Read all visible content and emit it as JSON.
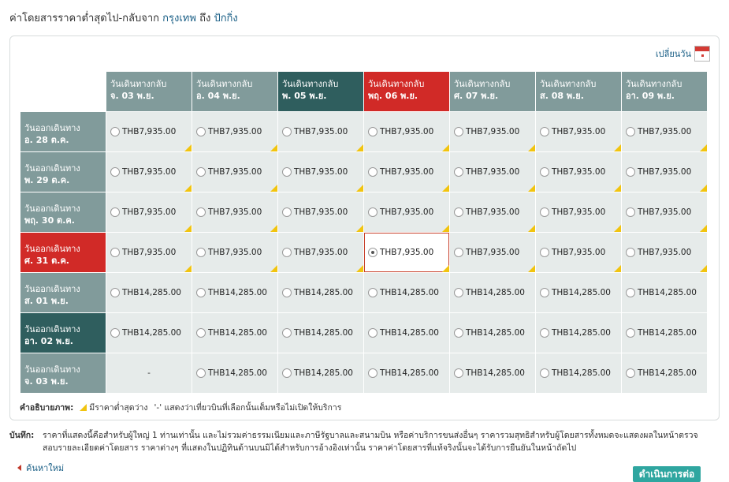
{
  "title": {
    "prefix": "ค่าโดยสารราคาต่ำสุดไป-กลับจาก ",
    "from_city": "กรุงเทพ",
    "mid": " ถึง ",
    "to_city": "ปักกิ่ง"
  },
  "change_date_label": "เปลี่ยนวัน",
  "columns": [
    {
      "label": "วันเดินทางกลับ",
      "date": "จ. 03 พ.ย.",
      "style": "normal"
    },
    {
      "label": "วันเดินทางกลับ",
      "date": "อ. 04 พ.ย.",
      "style": "normal"
    },
    {
      "label": "วันเดินทางกลับ",
      "date": "พ. 05 พ.ย.",
      "style": "dark"
    },
    {
      "label": "วันเดินทางกลับ",
      "date": "พฤ. 06 พ.ย.",
      "style": "red"
    },
    {
      "label": "วันเดินทางกลับ",
      "date": "ศ. 07 พ.ย.",
      "style": "normal"
    },
    {
      "label": "วันเดินทางกลับ",
      "date": "ส. 08 พ.ย.",
      "style": "normal"
    },
    {
      "label": "วันเดินทางกลับ",
      "date": "อา. 09 พ.ย.",
      "style": "normal"
    }
  ],
  "rows": [
    {
      "label": "วันออกเดินทาง",
      "date": "อ. 28 ต.ค.",
      "style": "normal",
      "prices": [
        "THB7,935.00",
        "THB7,935.00",
        "THB7,935.00",
        "THB7,935.00",
        "THB7,935.00",
        "THB7,935.00",
        "THB7,935.00"
      ],
      "lowest": [
        true,
        true,
        true,
        true,
        true,
        true,
        true
      ]
    },
    {
      "label": "วันออกเดินทาง",
      "date": "พ. 29 ต.ค.",
      "style": "normal",
      "prices": [
        "THB7,935.00",
        "THB7,935.00",
        "THB7,935.00",
        "THB7,935.00",
        "THB7,935.00",
        "THB7,935.00",
        "THB7,935.00"
      ],
      "lowest": [
        true,
        true,
        true,
        true,
        true,
        true,
        true
      ]
    },
    {
      "label": "วันออกเดินทาง",
      "date": "พฤ. 30 ต.ค.",
      "style": "normal",
      "prices": [
        "THB7,935.00",
        "THB7,935.00",
        "THB7,935.00",
        "THB7,935.00",
        "THB7,935.00",
        "THB7,935.00",
        "THB7,935.00"
      ],
      "lowest": [
        true,
        true,
        true,
        true,
        true,
        true,
        true
      ]
    },
    {
      "label": "วันออกเดินทาง",
      "date": "ศ. 31 ต.ค.",
      "style": "red",
      "prices": [
        "THB7,935.00",
        "THB7,935.00",
        "THB7,935.00",
        "THB7,935.00",
        "THB7,935.00",
        "THB7,935.00",
        "THB7,935.00"
      ],
      "lowest": [
        true,
        true,
        true,
        true,
        true,
        true,
        true
      ]
    },
    {
      "label": "วันออกเดินทาง",
      "date": "ส. 01 พ.ย.",
      "style": "normal",
      "prices": [
        "THB14,285.00",
        "THB14,285.00",
        "THB14,285.00",
        "THB14,285.00",
        "THB14,285.00",
        "THB14,285.00",
        "THB14,285.00"
      ],
      "lowest": [
        false,
        false,
        false,
        false,
        false,
        false,
        false
      ]
    },
    {
      "label": "วันออกเดินทาง",
      "date": "อา. 02 พ.ย.",
      "style": "dark",
      "prices": [
        "THB14,285.00",
        "THB14,285.00",
        "THB14,285.00",
        "THB14,285.00",
        "THB14,285.00",
        "THB14,285.00",
        "THB14,285.00"
      ],
      "lowest": [
        false,
        false,
        false,
        false,
        false,
        false,
        false
      ]
    },
    {
      "label": "วันออกเดินทาง",
      "date": "จ. 03 พ.ย.",
      "style": "normal",
      "prices": [
        "-",
        "THB14,285.00",
        "THB14,285.00",
        "THB14,285.00",
        "THB14,285.00",
        "THB14,285.00",
        "THB14,285.00"
      ],
      "lowest": [
        false,
        false,
        false,
        false,
        false,
        false,
        false
      ]
    }
  ],
  "selected": {
    "row": 3,
    "col": 3
  },
  "legend": {
    "label": "คำอธิบายภาพ:",
    "lowest_text": "มีราคาต่ำสุดว่าง",
    "dash_text": "'-' แสดงว่าเที่ยวบินที่เลือกนั้นเต็มหรือไม่เปิดให้บริการ"
  },
  "note": {
    "label": "บันทึก:",
    "line1": "ราคาที่แสดงนี้คือสำหรับผู้ใหญ่ 1 ท่านเท่านั้น และไม่รวมค่าธรรมเนียมและภาษีรัฐบาลและสนามบิน หรือค่าบริการขนส่งอื่นๆ ราคารวมสุทธิสำหรับผู้โดยสารทั้งหมดจะแสดงผลในหน้าตรวจ",
    "line2": "สอบรายละเอียดค่าโดยสาร ราคาต่างๆ ที่แสดงในปฏิทินด้านบนมิได้สำหรับการอ้างอิงเท่านั้น ราคาค่าโดยสารที่แท้จริงนั้นจะได้รับการยืนยันในหน้าถัดไป"
  },
  "back_link": "ค้นหาใหม่",
  "continue_button": "ดำเนินการต่อ",
  "colors": {
    "accent": "#d12a27",
    "header": "#819b9b",
    "header_dark": "#2f5e5e",
    "cell_bg": "#e6ebea",
    "lowest_marker": "#f1c40f",
    "button": "#2fa6a0"
  }
}
